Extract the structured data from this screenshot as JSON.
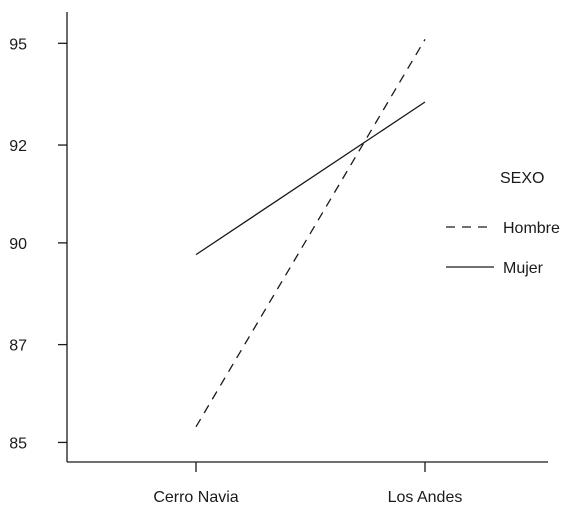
{
  "chart_data": {
    "type": "line",
    "categories": [
      "Cerro Navia",
      "Los Andes"
    ],
    "series": [
      {
        "name": "Hombre",
        "values": [
          85.2,
          95.1
        ],
        "dash": "dashed",
        "color": "#1a1a1a"
      },
      {
        "name": "Mujer",
        "values": [
          89.6,
          93.5
        ],
        "dash": "solid",
        "color": "#1a1a1a"
      }
    ],
    "y_ticks": [
      "95",
      "92",
      "90",
      "87",
      "85"
    ],
    "y_tick_values": [
      95.0,
      92.4,
      89.9,
      87.3,
      84.8
    ],
    "ylim": [
      84.3,
      95.8
    ],
    "legend": {
      "title": "SEXO",
      "placement": "right"
    },
    "grid": false,
    "title": "",
    "xlabel": "",
    "ylabel": ""
  }
}
